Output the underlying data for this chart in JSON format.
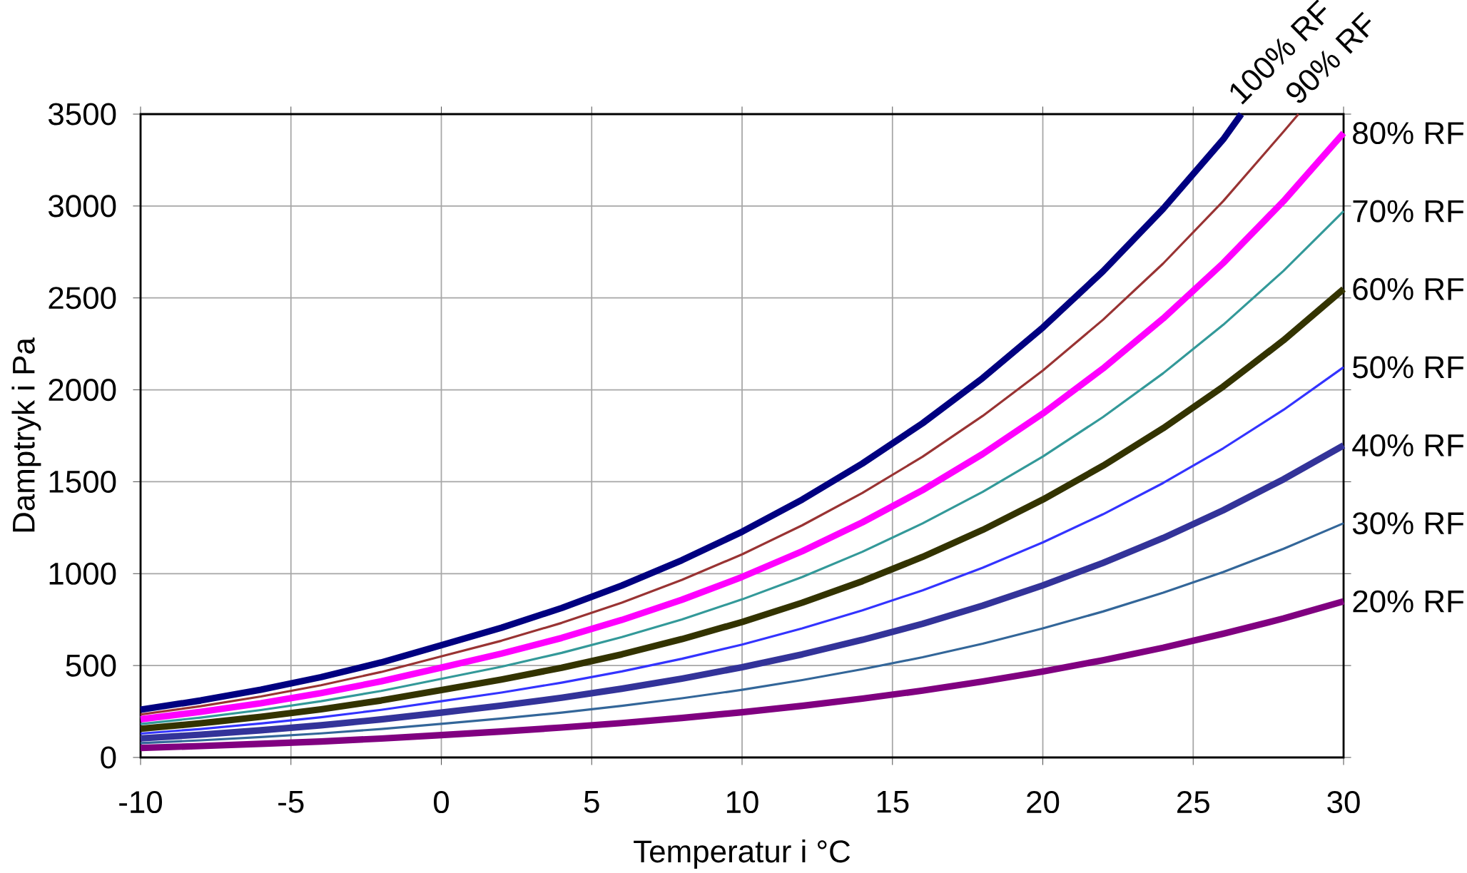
{
  "chart_data": {
    "type": "line",
    "xlabel": "Temperatur i °C",
    "ylabel": "Damptryk i Pa",
    "xlim": [
      -10,
      30
    ],
    "ylim": [
      0,
      3500
    ],
    "xticks": [
      -10,
      -5,
      0,
      5,
      10,
      15,
      20,
      25,
      30
    ],
    "yticks": [
      0,
      500,
      1000,
      1500,
      2000,
      2500,
      3000,
      3500
    ],
    "grid": true,
    "marker": "none",
    "line_style": "solid",
    "series": [
      {
        "name": "100% RF",
        "color": "#000080",
        "x": [
          -10,
          -8,
          -6,
          -4,
          -2,
          0,
          2,
          4,
          6,
          8,
          10,
          12,
          14,
          16,
          18,
          20,
          22,
          24,
          26,
          26.6
        ],
        "values": [
          260,
          310,
          369,
          437,
          517,
          611,
          706,
          813,
          935,
          1073,
          1228,
          1403,
          1599,
          1818,
          2064,
          2339,
          2645,
          2985,
          3363,
          3500
        ]
      },
      {
        "name": "90% RF",
        "color": "#993333",
        "x": [
          -10,
          -8,
          -6,
          -4,
          -2,
          0,
          2,
          4,
          6,
          8,
          10,
          12,
          14,
          16,
          18,
          20,
          22,
          24,
          26,
          28,
          28.5
        ],
        "values": [
          234,
          279,
          332,
          393,
          465,
          550,
          635,
          732,
          842,
          966,
          1105,
          1263,
          1439,
          1636,
          1858,
          2105,
          2381,
          2687,
          3027,
          3404,
          3500
        ]
      },
      {
        "name": "80% RF",
        "color": "#ff00ff",
        "x": [
          -10,
          -8,
          -6,
          -4,
          -2,
          0,
          2,
          4,
          6,
          8,
          10,
          12,
          14,
          16,
          18,
          20,
          22,
          24,
          26,
          28,
          30
        ],
        "values": [
          208,
          248,
          295,
          350,
          414,
          489,
          565,
          650,
          748,
          858,
          982,
          1122,
          1279,
          1454,
          1651,
          1871,
          2116,
          2388,
          2690,
          3026,
          3397
        ]
      },
      {
        "name": "70% RF",
        "color": "#339999",
        "x": [
          -10,
          -8,
          -6,
          -4,
          -2,
          0,
          2,
          4,
          6,
          8,
          10,
          12,
          14,
          16,
          18,
          20,
          22,
          24,
          26,
          28,
          30
        ],
        "values": [
          182,
          217,
          258,
          306,
          362,
          428,
          494,
          569,
          655,
          751,
          860,
          982,
          1119,
          1273,
          1445,
          1637,
          1852,
          2090,
          2354,
          2647,
          2972
        ]
      },
      {
        "name": "60% RF",
        "color": "#333300",
        "x": [
          -10,
          -8,
          -6,
          -4,
          -2,
          0,
          2,
          4,
          6,
          8,
          10,
          12,
          14,
          16,
          18,
          20,
          22,
          24,
          26,
          28,
          30
        ],
        "values": [
          156,
          186,
          221,
          262,
          310,
          367,
          424,
          488,
          561,
          644,
          737,
          842,
          959,
          1091,
          1238,
          1403,
          1587,
          1791,
          2018,
          2269,
          2548
        ]
      },
      {
        "name": "50% RF",
        "color": "#3333ff",
        "x": [
          -10,
          -8,
          -6,
          -4,
          -2,
          0,
          2,
          4,
          6,
          8,
          10,
          12,
          14,
          16,
          18,
          20,
          22,
          24,
          26,
          28,
          30
        ],
        "values": [
          130,
          155,
          185,
          219,
          259,
          306,
          353,
          407,
          468,
          537,
          614,
          702,
          800,
          909,
          1032,
          1170,
          1323,
          1493,
          1682,
          1891,
          2123
        ]
      },
      {
        "name": "40% RF",
        "color": "#333399",
        "x": [
          -10,
          -8,
          -6,
          -4,
          -2,
          0,
          2,
          4,
          6,
          8,
          10,
          12,
          14,
          16,
          18,
          20,
          22,
          24,
          26,
          28,
          30
        ],
        "values": [
          104,
          124,
          148,
          175,
          207,
          244,
          282,
          325,
          374,
          429,
          491,
          561,
          640,
          727,
          826,
          936,
          1058,
          1194,
          1345,
          1513,
          1698
        ]
      },
      {
        "name": "30% RF",
        "color": "#336699",
        "x": [
          -10,
          -8,
          -6,
          -4,
          -2,
          0,
          2,
          4,
          6,
          8,
          10,
          12,
          14,
          16,
          18,
          20,
          22,
          24,
          26,
          28,
          30
        ],
        "values": [
          78,
          93,
          111,
          131,
          155,
          183,
          212,
          244,
          281,
          322,
          368,
          421,
          480,
          545,
          619,
          702,
          794,
          896,
          1009,
          1135,
          1274
        ]
      },
      {
        "name": "20% RF",
        "color": "#800080",
        "x": [
          -10,
          -8,
          -6,
          -4,
          -2,
          0,
          2,
          4,
          6,
          8,
          10,
          12,
          14,
          16,
          18,
          20,
          22,
          24,
          26,
          28,
          30
        ],
        "values": [
          52,
          62,
          74,
          87,
          103,
          122,
          141,
          163,
          187,
          215,
          246,
          281,
          320,
          364,
          413,
          468,
          529,
          597,
          673,
          756,
          849
        ]
      }
    ]
  }
}
